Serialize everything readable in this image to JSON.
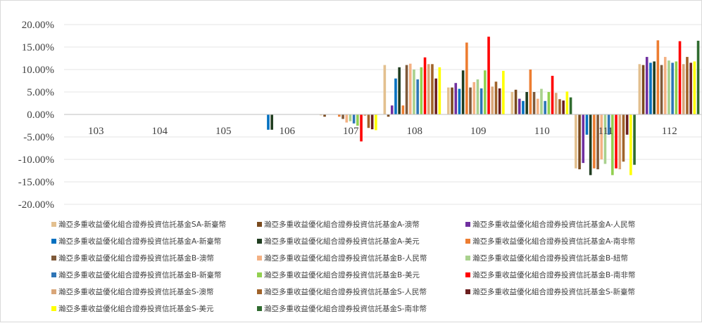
{
  "chart_data": {
    "type": "bar",
    "title": "",
    "xlabel": "",
    "ylabel": "",
    "ylim": [
      -0.2,
      0.2
    ],
    "yticks": [
      0.2,
      0.15,
      0.1,
      0.05,
      0.0,
      -0.05,
      -0.1,
      -0.15,
      -0.2
    ],
    "ytick_labels": [
      "20.00%",
      "15.00%",
      "10.00%",
      "5.00%",
      "0.00%",
      "-5.00%",
      "-10.00%",
      "-15.00%",
      "-20.00%"
    ],
    "categories": [
      "103",
      "104",
      "105",
      "106",
      "107",
      "108",
      "109",
      "110",
      "111",
      "112"
    ],
    "grid": "horizontal",
    "legend_position": "bottom",
    "series": [
      {
        "name": "瀚亞多重收益優化組合證券投資信託基金SA-新臺幣",
        "color": "#e3c08f",
        "values": [
          null,
          null,
          null,
          null,
          -0.002,
          0.11,
          0.06,
          0.05,
          -0.12,
          0.112
        ]
      },
      {
        "name": "瀚亞多重收益優化組合證券投資信託基金A-澳幣",
        "color": "#7a4a1e",
        "values": [
          null,
          null,
          null,
          null,
          -0.005,
          -0.005,
          0.06,
          0.055,
          -0.122,
          0.11
        ]
      },
      {
        "name": "瀚亞多重收益優化組合證券投資信託基金A-人民幣",
        "color": "#7030a0",
        "values": [
          null,
          null,
          null,
          null,
          null,
          0.02,
          0.07,
          0.035,
          -0.108,
          0.128
        ]
      },
      {
        "name": "瀚亞多重收益優化組合證券投資信託基金A-新臺幣",
        "color": "#0070c0",
        "values": [
          null,
          null,
          null,
          -0.034,
          null,
          0.08,
          0.057,
          0.03,
          -0.045,
          0.115
        ]
      },
      {
        "name": "瀚亞多重收益優化組合證券投資信託基金A-美元",
        "color": "#203d20",
        "values": [
          null,
          null,
          null,
          -0.034,
          null,
          0.105,
          0.098,
          0.05,
          -0.135,
          0.118
        ]
      },
      {
        "name": "瀚亞多重收益優化組合證券投資信託基金A-南非幣",
        "color": "#ed7d31",
        "values": [
          null,
          null,
          null,
          null,
          -0.005,
          0.02,
          0.16,
          0.1,
          -0.12,
          0.165
        ]
      },
      {
        "name": "瀚亞多重收益優化組合證券投資信託基金B-澳幣",
        "color": "#7f5a3a",
        "values": [
          null,
          null,
          null,
          null,
          -0.01,
          0.11,
          0.06,
          0.05,
          -0.122,
          0.11
        ]
      },
      {
        "name": "瀚亞多重收益優化組合證券投資信託基金B-人民幣",
        "color": "#f4b183",
        "values": [
          null,
          null,
          null,
          null,
          -0.018,
          0.113,
          0.072,
          0.035,
          -0.1,
          0.128
        ]
      },
      {
        "name": "瀚亞多重收益優化組合證券投資信託基金B-紐幣",
        "color": "#a9d18e",
        "values": [
          null,
          null,
          null,
          null,
          -0.015,
          0.1,
          0.078,
          0.057,
          -0.11,
          0.12
        ]
      },
      {
        "name": "瀚亞多重收益優化組合證券投資信託基金B-新臺幣",
        "color": "#2e75b6",
        "values": [
          null,
          null,
          null,
          null,
          -0.02,
          0.078,
          0.058,
          0.03,
          -0.045,
          0.115
        ]
      },
      {
        "name": "瀚亞多重收益優化組合證券投資信託基金B-美元",
        "color": "#92d050",
        "values": [
          null,
          null,
          null,
          null,
          -0.025,
          0.105,
          0.098,
          0.05,
          -0.135,
          0.118
        ]
      },
      {
        "name": "瀚亞多重收益優化組合證券投資信託基金B-南非幣",
        "color": "#ff0000",
        "values": [
          null,
          null,
          null,
          null,
          -0.06,
          0.127,
          0.173,
          0.086,
          -0.12,
          0.163
        ]
      },
      {
        "name": "瀚亞多重收益優化組合證券投資信託基金S-澳幣",
        "color": "#d9a679",
        "values": [
          null,
          null,
          null,
          null,
          -0.003,
          0.112,
          0.062,
          0.048,
          -0.122,
          0.112
        ]
      },
      {
        "name": "瀚亞多重收益優化組合證券投資信託基金S-人民幣",
        "color": "#a0632a",
        "values": [
          null,
          null,
          null,
          null,
          -0.03,
          0.112,
          0.073,
          0.034,
          -0.105,
          0.128
        ]
      },
      {
        "name": "瀚亞多重收益優化組合證券投資信託基金S-新臺幣",
        "color": "#6b1f1f",
        "values": [
          null,
          null,
          null,
          null,
          -0.033,
          0.08,
          0.058,
          0.031,
          -0.045,
          0.115
        ]
      },
      {
        "name": "瀚亞多重收益優化組合證券投資信託基金S-美元",
        "color": "#ffff00",
        "values": [
          null,
          null,
          null,
          null,
          -0.035,
          0.105,
          0.097,
          0.051,
          -0.135,
          0.118
        ]
      },
      {
        "name": "瀚亞多重收益優化組合證券投資信託基金S-南非幣",
        "color": "#2f6b2f",
        "values": [
          null,
          null,
          null,
          null,
          null,
          null,
          null,
          0.038,
          -0.112,
          0.164
        ]
      }
    ]
  }
}
